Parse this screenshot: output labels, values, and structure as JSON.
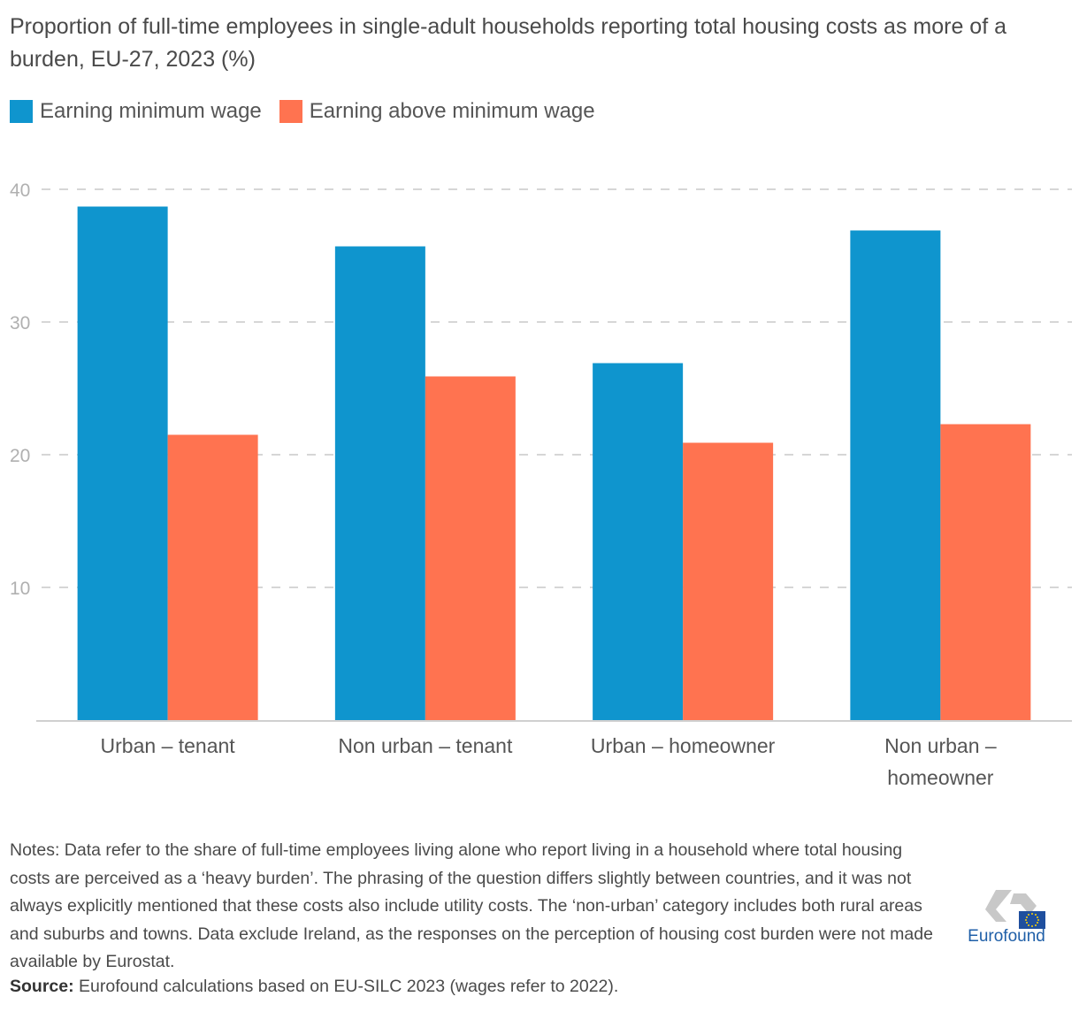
{
  "chart_data": {
    "type": "bar",
    "title": "Proportion of full-time employees in single-adult households reporting total housing costs as more of a burden, EU-27, 2023 (%)",
    "xlabel": "",
    "ylabel": "",
    "ylim": [
      0,
      40
    ],
    "yticks": [
      10,
      20,
      30,
      40
    ],
    "grid": true,
    "legend_position": "top-left",
    "categories": [
      "Urban – tenant",
      "Non urban – tenant",
      "Urban – homeowner",
      "Non urban – homeowner"
    ],
    "category_lines": [
      [
        "Urban – tenant"
      ],
      [
        "Non urban – tenant"
      ],
      [
        "Urban – homeowner"
      ],
      [
        "Non urban –",
        "homeowner"
      ]
    ],
    "series": [
      {
        "name": "Earning minimum wage",
        "color": "#0f95ce",
        "values": [
          38.7,
          35.7,
          26.9,
          36.9
        ]
      },
      {
        "name": "Earning above minimum wage",
        "color": "#ff7350",
        "values": [
          21.5,
          25.9,
          20.9,
          22.3
        ]
      }
    ]
  },
  "title": "Proportion of full-time employees in single-adult households reporting total housing costs as more of a burden, EU-27, 2023 (%)",
  "legend": [
    {
      "label": "Earning minimum wage",
      "color": "#0f95ce"
    },
    {
      "label": "Earning above minimum wage",
      "color": "#ff7350"
    }
  ],
  "notes": "Notes: Data refer to the share of full-time employees living alone who report living in a household where total housing costs are perceived as a ‘heavy burden’. The phrasing of the question differs slightly between countries, and it was not always explicitly mentioned that these costs also include utility costs. The ‘non-urban’ category includes both rural areas and suburbs and towns. Data exclude Ireland, as the responses on the perception of housing cost burden were not made available by Eurostat.",
  "source": {
    "label": "Source:",
    "text": " Eurofound calculations based on EU-SILC 2023 (wages refer to 2022)."
  },
  "logo": {
    "text": "Eurofound"
  }
}
